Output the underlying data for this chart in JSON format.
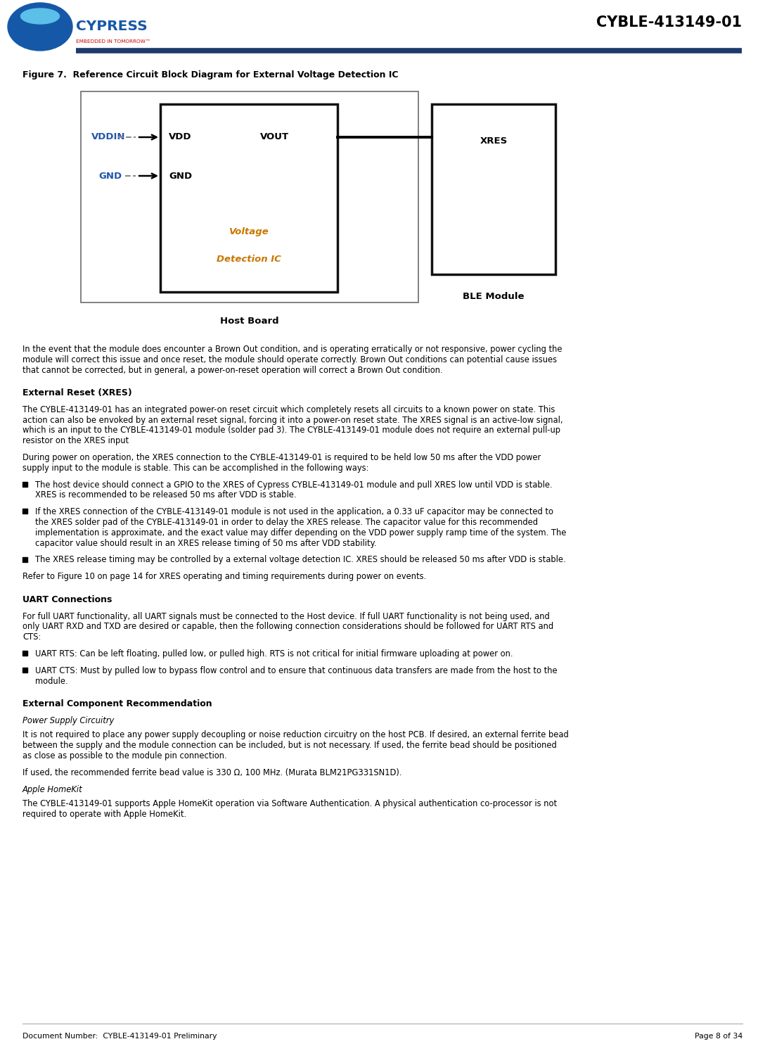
{
  "page_width": 10.88,
  "page_height": 14.94,
  "dpi": 100,
  "bg_color": "#ffffff",
  "header_line_color": "#1e3a6b",
  "header_title": "CYBLE-413149-01",
  "footer_left": "Document Number:  CYBLE-413149-01 Preliminary",
  "footer_right": "Page 8 of 34",
  "figure_caption": "Figure 7.  Reference Circuit Block Diagram for External Voltage Detection IC",
  "diagram": {
    "host_board_label": "Host Board",
    "vic_label_line1": "Voltage",
    "vic_label_line2": "Detection IC",
    "vic_label_color": "#c87800",
    "vdd_label": "VDD",
    "gnd_label": "GND",
    "vout_label": "VOUT",
    "vddin_label": "VDDIN",
    "vddin_color": "#2255aa",
    "gnd_color": "#2255aa",
    "xres_label": "XRES",
    "ble_label": "BLE Module",
    "ble_color": "#000000",
    "signal_bold": true
  },
  "paragraphs": [
    {
      "type": "body",
      "indent": 0,
      "text": "In the event that the module does encounter a Brown Out condition, and is operating erratically or not responsive, power cycling the\nmodule will correct this issue and once reset, the module should operate correctly. Brown Out conditions can potential cause issues\nthat cannot be corrected, but in general, a power-on-reset operation will correct a Brown Out condition."
    },
    {
      "type": "heading",
      "indent": 0,
      "text": "External Reset (XRES)"
    },
    {
      "type": "body",
      "indent": 0,
      "text": "The CYBLE-413149-01 has an integrated power-on reset circuit which completely resets all circuits to a known power on state. This\naction can also be envoked by an external reset signal, forcing it into a power-on reset state. The XRES signal is an active-low signal,\nwhich is an input to the CYBLE-413149-01 module (solder pad 3). The CYBLE-413149-01 module does not require an external pull-up\nresistor on the XRES input"
    },
    {
      "type": "body",
      "indent": 0,
      "text": "During power on operation, the XRES connection to the CYBLE-413149-01 is required to be held low 50 ms after the VDD power\nsupply input to the module is stable. This can be accomplished in the following ways:"
    },
    {
      "type": "bullet",
      "indent": 0,
      "text": "The host device should connect a GPIO to the XRES of Cypress CYBLE-413149-01 module and pull XRES low until VDD is stable.\nXRES is recommended to be released 50 ms after VDD is stable."
    },
    {
      "type": "bullet",
      "indent": 0,
      "text": "If the XRES connection of the CYBLE-413149-01 module is not used in the application, a 0.33 uF capacitor may be connected to\nthe XRES solder pad of the CYBLE-413149-01 in order to delay the XRES release. The capacitor value for this recommended\nimplementation is approximate, and the exact value may differ depending on the VDD power supply ramp time of the system. The\ncapacitor value should result in an XRES release timing of 50 ms after VDD stability."
    },
    {
      "type": "bullet",
      "indent": 0,
      "text": "The XRES release timing may be controlled by a external voltage detection IC. XRES should be released 50 ms after VDD is stable."
    },
    {
      "type": "body",
      "indent": 0,
      "text": "Refer to Figure 10 on page 14 for XRES operating and timing requirements during power on events."
    },
    {
      "type": "heading",
      "indent": 0,
      "text": "UART Connections"
    },
    {
      "type": "body",
      "indent": 0,
      "text": "For full UART functionality, all UART signals must be connected to the Host device. If full UART functionality is not being used, and\nonly UART RXD and TXD are desired or capable, then the following connection considerations should be followed for UART RTS and\nCTS:"
    },
    {
      "type": "bullet",
      "indent": 0,
      "text": "UART RTS: Can be left floating, pulled low, or pulled high. RTS is not critical for initial firmware uploading at power on."
    },
    {
      "type": "bullet",
      "indent": 0,
      "text": "UART CTS: Must by pulled low to bypass flow control and to ensure that continuous data transfers are made from the host to the\nmodule."
    },
    {
      "type": "heading",
      "indent": 0,
      "text": "External Component Recommendation"
    },
    {
      "type": "subheading",
      "indent": 0,
      "text": "Power Supply Circuitry"
    },
    {
      "type": "body",
      "indent": 0,
      "text": "It is not required to place any power supply decoupling or noise reduction circuitry on the host PCB. If desired, an external ferrite bead\nbetween the supply and the module connection can be included, but is not necessary. If used, the ferrite bead should be positioned\nas close as possible to the module pin connection."
    },
    {
      "type": "body",
      "indent": 0,
      "text": "If used, the recommended ferrite bead value is 330 Ω, 100 MHz. (Murata BLM21PG331SN1D)."
    },
    {
      "type": "subheading",
      "indent": 0,
      "text": "Apple HomeKit"
    },
    {
      "type": "body",
      "indent": 0,
      "text": "The CYBLE-413149-01 supports Apple HomeKit operation via Software Authentication. A physical authentication co-processor is not\nrequired to operate with Apple HomeKit."
    }
  ]
}
